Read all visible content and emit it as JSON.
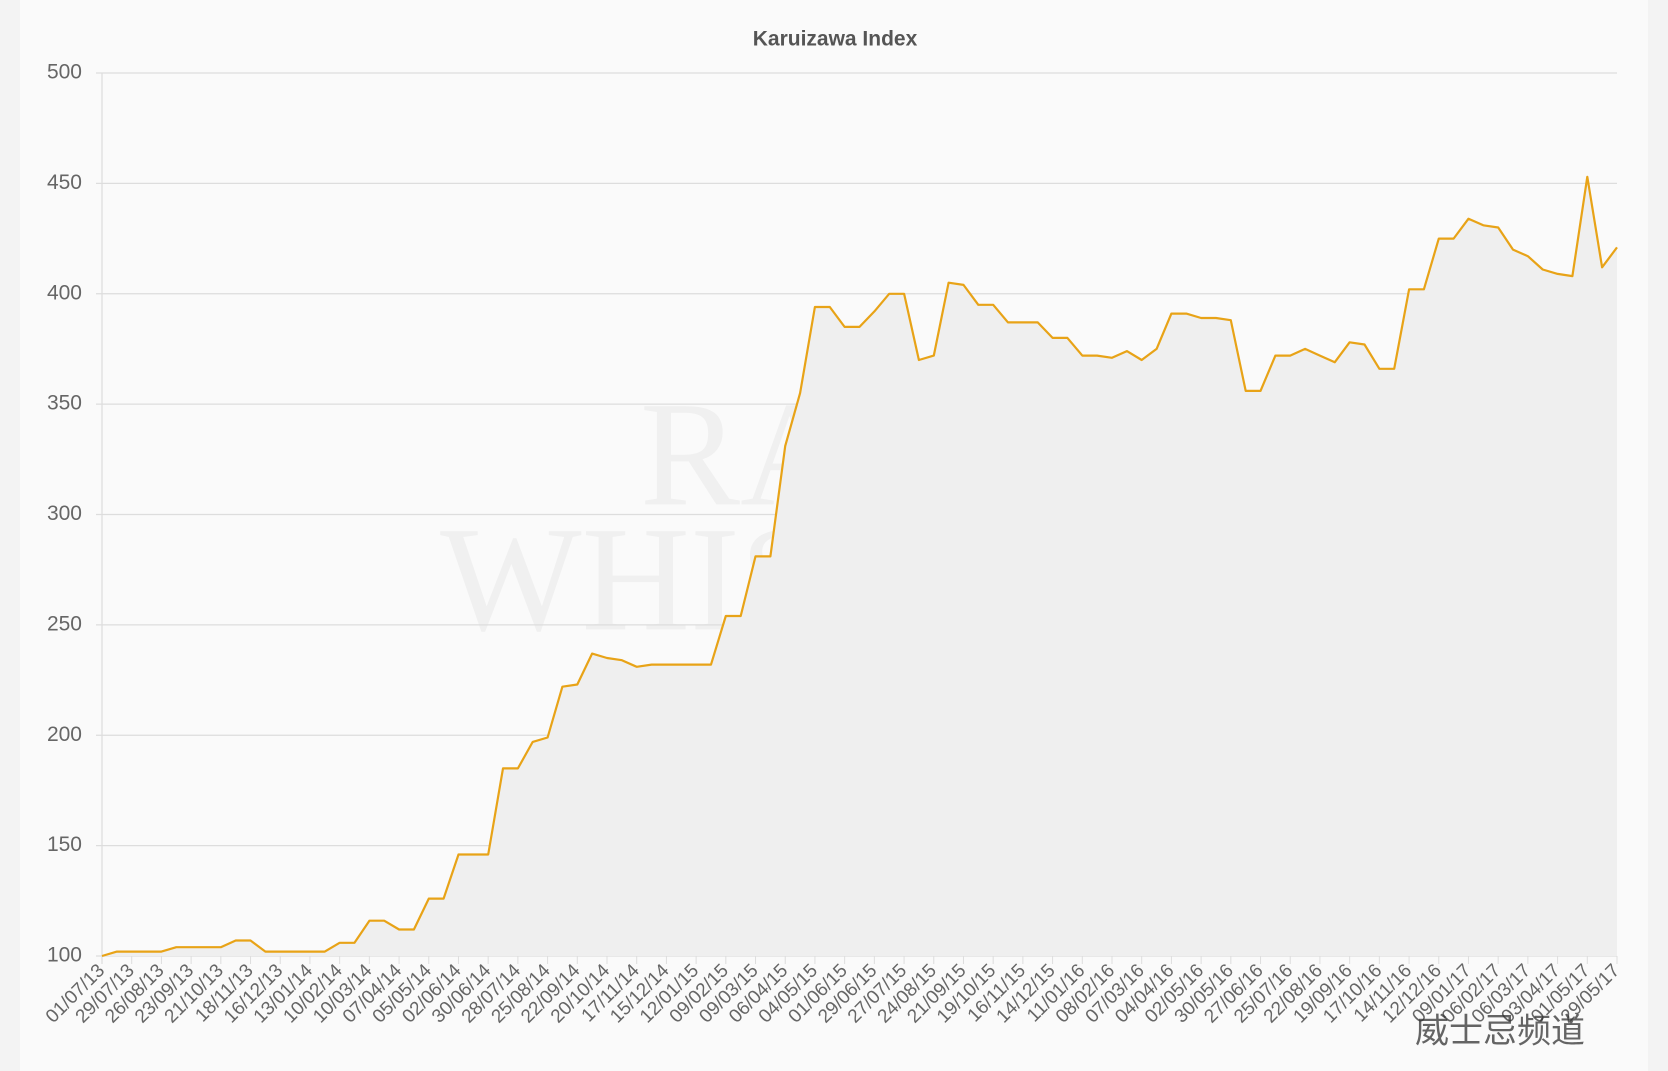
{
  "chart_data": {
    "type": "line",
    "title": "Karuizawa Index",
    "watermark": [
      "RARE",
      "WHISKY"
    ],
    "overlay_text": "威士忌频道",
    "categories": [
      "01/07/13",
      null,
      "29/07/13",
      null,
      "26/08/13",
      null,
      "23/09/13",
      null,
      "21/10/13",
      null,
      "18/11/13",
      null,
      "16/12/13",
      null,
      "13/01/14",
      null,
      "10/02/14",
      null,
      "10/03/14",
      null,
      "07/04/14",
      null,
      "05/05/14",
      null,
      "02/06/14",
      null,
      "30/06/14",
      null,
      "28/07/14",
      null,
      "25/08/14",
      null,
      "22/09/14",
      null,
      "20/10/14",
      null,
      "17/11/14",
      null,
      "15/12/14",
      null,
      "12/01/15",
      null,
      "09/02/15",
      null,
      "09/03/15",
      null,
      "06/04/15",
      null,
      "04/05/15",
      null,
      "01/06/15",
      null,
      "29/06/15",
      null,
      "27/07/15",
      null,
      "24/08/15",
      null,
      "21/09/15",
      null,
      "19/10/15",
      null,
      "16/11/15",
      null,
      "14/12/15",
      null,
      "11/01/16",
      null,
      "08/02/16",
      null,
      "07/03/16",
      null,
      "04/04/16",
      null,
      "02/05/16",
      null,
      "30/05/16",
      null,
      "27/06/16",
      null,
      "25/07/16",
      null,
      "22/08/16",
      null,
      "19/09/16",
      null,
      "17/10/16",
      null,
      "14/11/16",
      null,
      "12/12/16",
      null,
      "09/01/17",
      null,
      "06/02/17",
      null,
      "06/03/17",
      null,
      "03/04/17",
      null,
      "01/05/17",
      null,
      "29/05/17"
    ],
    "series": [
      {
        "name": "Karuizawa Index",
        "color": "#e8a317",
        "fill": "#efefef",
        "values": [
          100,
          102,
          102,
          102,
          102,
          104,
          104,
          104,
          104,
          107,
          107,
          102,
          102,
          102,
          102,
          102,
          106,
          106,
          116,
          116,
          112,
          112,
          126,
          126,
          146,
          146,
          146,
          185,
          185,
          197,
          199,
          222,
          223,
          237,
          235,
          234,
          231,
          232,
          232,
          232,
          232,
          232,
          254,
          254,
          281,
          281,
          331,
          355,
          394,
          394,
          385,
          385,
          392,
          400,
          400,
          370,
          372,
          405,
          404,
          395,
          395,
          387,
          387,
          387,
          380,
          380,
          372,
          372,
          371,
          374,
          370,
          375,
          391,
          391,
          389,
          389,
          388,
          356,
          356,
          372,
          372,
          375,
          372,
          369,
          378,
          377,
          366,
          366,
          402,
          402,
          425,
          425,
          434,
          431,
          430,
          420,
          417,
          411,
          409,
          408,
          453,
          412,
          421
        ]
      }
    ],
    "ylim": [
      100,
      500
    ],
    "yticks": [
      100,
      150,
      200,
      250,
      300,
      350,
      400,
      450,
      500
    ],
    "grid": true
  }
}
